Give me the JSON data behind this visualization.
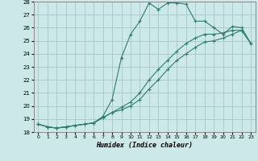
{
  "xlabel": "Humidex (Indice chaleur)",
  "bg_color": "#cce8e8",
  "grid_color": "#aacccc",
  "line_color": "#2e7d6e",
  "xlim": [
    -0.5,
    23.5
  ],
  "ylim": [
    18,
    28
  ],
  "xticks": [
    0,
    1,
    2,
    3,
    4,
    5,
    6,
    7,
    8,
    9,
    10,
    11,
    12,
    13,
    14,
    15,
    16,
    17,
    18,
    19,
    20,
    21,
    22,
    23
  ],
  "yticks": [
    18,
    19,
    20,
    21,
    22,
    23,
    24,
    25,
    26,
    27,
    28
  ],
  "line1_x": [
    0,
    1,
    2,
    3,
    4,
    5,
    6,
    7,
    8,
    9,
    10,
    11,
    12,
    13,
    14,
    15,
    16,
    17,
    18,
    19,
    20,
    21,
    22,
    23
  ],
  "line1_y": [
    18.6,
    18.4,
    18.3,
    18.4,
    18.5,
    18.6,
    18.7,
    19.2,
    20.5,
    23.7,
    25.5,
    26.5,
    27.9,
    27.4,
    27.9,
    27.9,
    27.8,
    26.5,
    26.5,
    26.0,
    25.5,
    26.1,
    26.0,
    24.8
  ],
  "line2_x": [
    0,
    1,
    2,
    3,
    4,
    5,
    6,
    7,
    8,
    9,
    10,
    11,
    12,
    13,
    14,
    15,
    16,
    17,
    18,
    19,
    20,
    21,
    22,
    23
  ],
  "line2_y": [
    18.6,
    18.4,
    18.3,
    18.4,
    18.5,
    18.6,
    18.7,
    19.1,
    19.5,
    19.7,
    20.0,
    20.5,
    21.3,
    22.0,
    22.8,
    23.5,
    24.0,
    24.5,
    24.9,
    25.0,
    25.2,
    25.5,
    25.8,
    24.8
  ],
  "line3_x": [
    0,
    1,
    2,
    3,
    4,
    5,
    6,
    7,
    8,
    9,
    10,
    11,
    12,
    13,
    14,
    15,
    16,
    17,
    18,
    19,
    20,
    21,
    22,
    23
  ],
  "line3_y": [
    18.6,
    18.4,
    18.3,
    18.4,
    18.5,
    18.6,
    18.7,
    19.1,
    19.5,
    19.9,
    20.3,
    21.0,
    22.0,
    22.8,
    23.5,
    24.2,
    24.8,
    25.2,
    25.5,
    25.5,
    25.6,
    25.8,
    25.8,
    24.8
  ]
}
